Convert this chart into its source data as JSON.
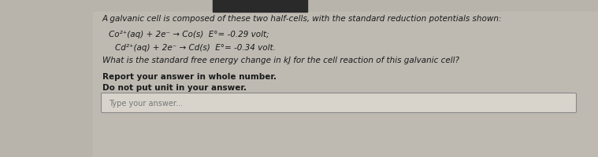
{
  "bg_color": "#b8b4ac",
  "panel_color": "#c4c0b8",
  "text_color": "#1a1a1a",
  "dark_bar_color": "#2a2a2a",
  "title_line": "A galvanic cell is composed of these two half-cells, with the standard reduction potentials shown:",
  "half_cell1": "Co²⁺(aq) + 2e⁻ → Co(s)  E°= -0.29 volt;",
  "half_cell2": "Cd²⁺(aq) + 2e⁻ → Cd(s)  E°= -0.34 volt.",
  "question_line": "What is the standard free energy change in kJ for the cell reaction of this galvanic cell?",
  "instruction1": "Report your answer in whole number.",
  "instruction2": "Do not put unit in your answer.",
  "answer_placeholder": "Type your answer...",
  "input_box_color": "#d8d4cc",
  "input_border_color": "#888888",
  "figsize": [
    7.59,
    2.01
  ],
  "dpi": 100
}
